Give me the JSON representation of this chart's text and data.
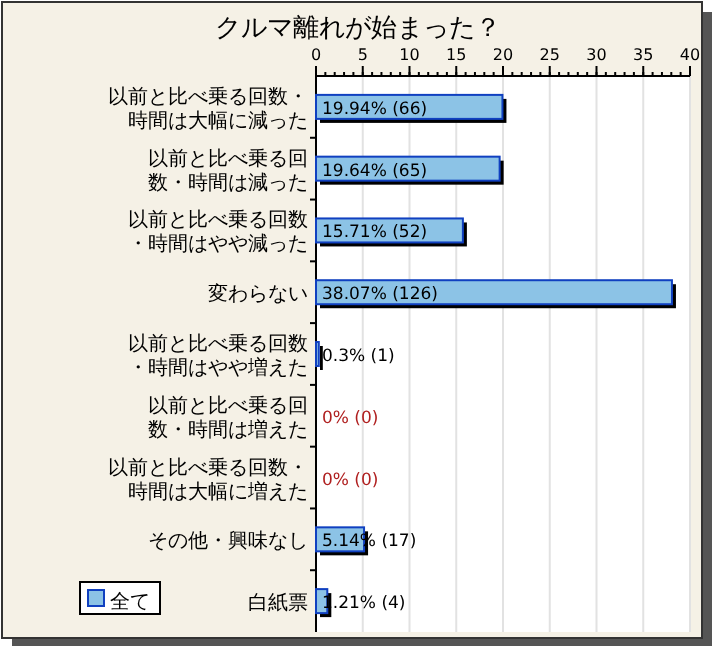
{
  "chart_data": {
    "type": "bar",
    "orientation": "horizontal",
    "title": "クルマ離れが始まった？",
    "categories": [
      "以前と比べ乗る回数・時間は大幅に減った",
      "以前と比べ乗る回数・時間は減った",
      "以前と比べ乗る回数・時間はやや減った",
      "変わらない",
      "以前と比べ乗る回数・時間はやや増えた",
      "以前と比べ乗る回数・時間は増えた",
      "以前と比べ乗る回数・時間は大幅に増えた",
      "その他・興味なし",
      "白紙票"
    ],
    "series": [
      {
        "name": "全て",
        "color": "#8cc3e6",
        "values": [
          19.94,
          19.64,
          15.71,
          38.07,
          0.3,
          0,
          0,
          5.14,
          1.21
        ],
        "value_labels": [
          "19.94% (66)",
          "19.64% (65)",
          "15.71% (52)",
          "38.07% (126)",
          "0.3% (1)",
          "0% (0)",
          "0% (0)",
          "5.14% (17)",
          "1.21% (4)"
        ]
      }
    ],
    "xlim": [
      0,
      40
    ],
    "xticks": [
      0,
      5,
      10,
      15,
      20,
      25,
      30,
      35,
      40
    ],
    "grid": "x",
    "legend": "bottom left"
  }
}
